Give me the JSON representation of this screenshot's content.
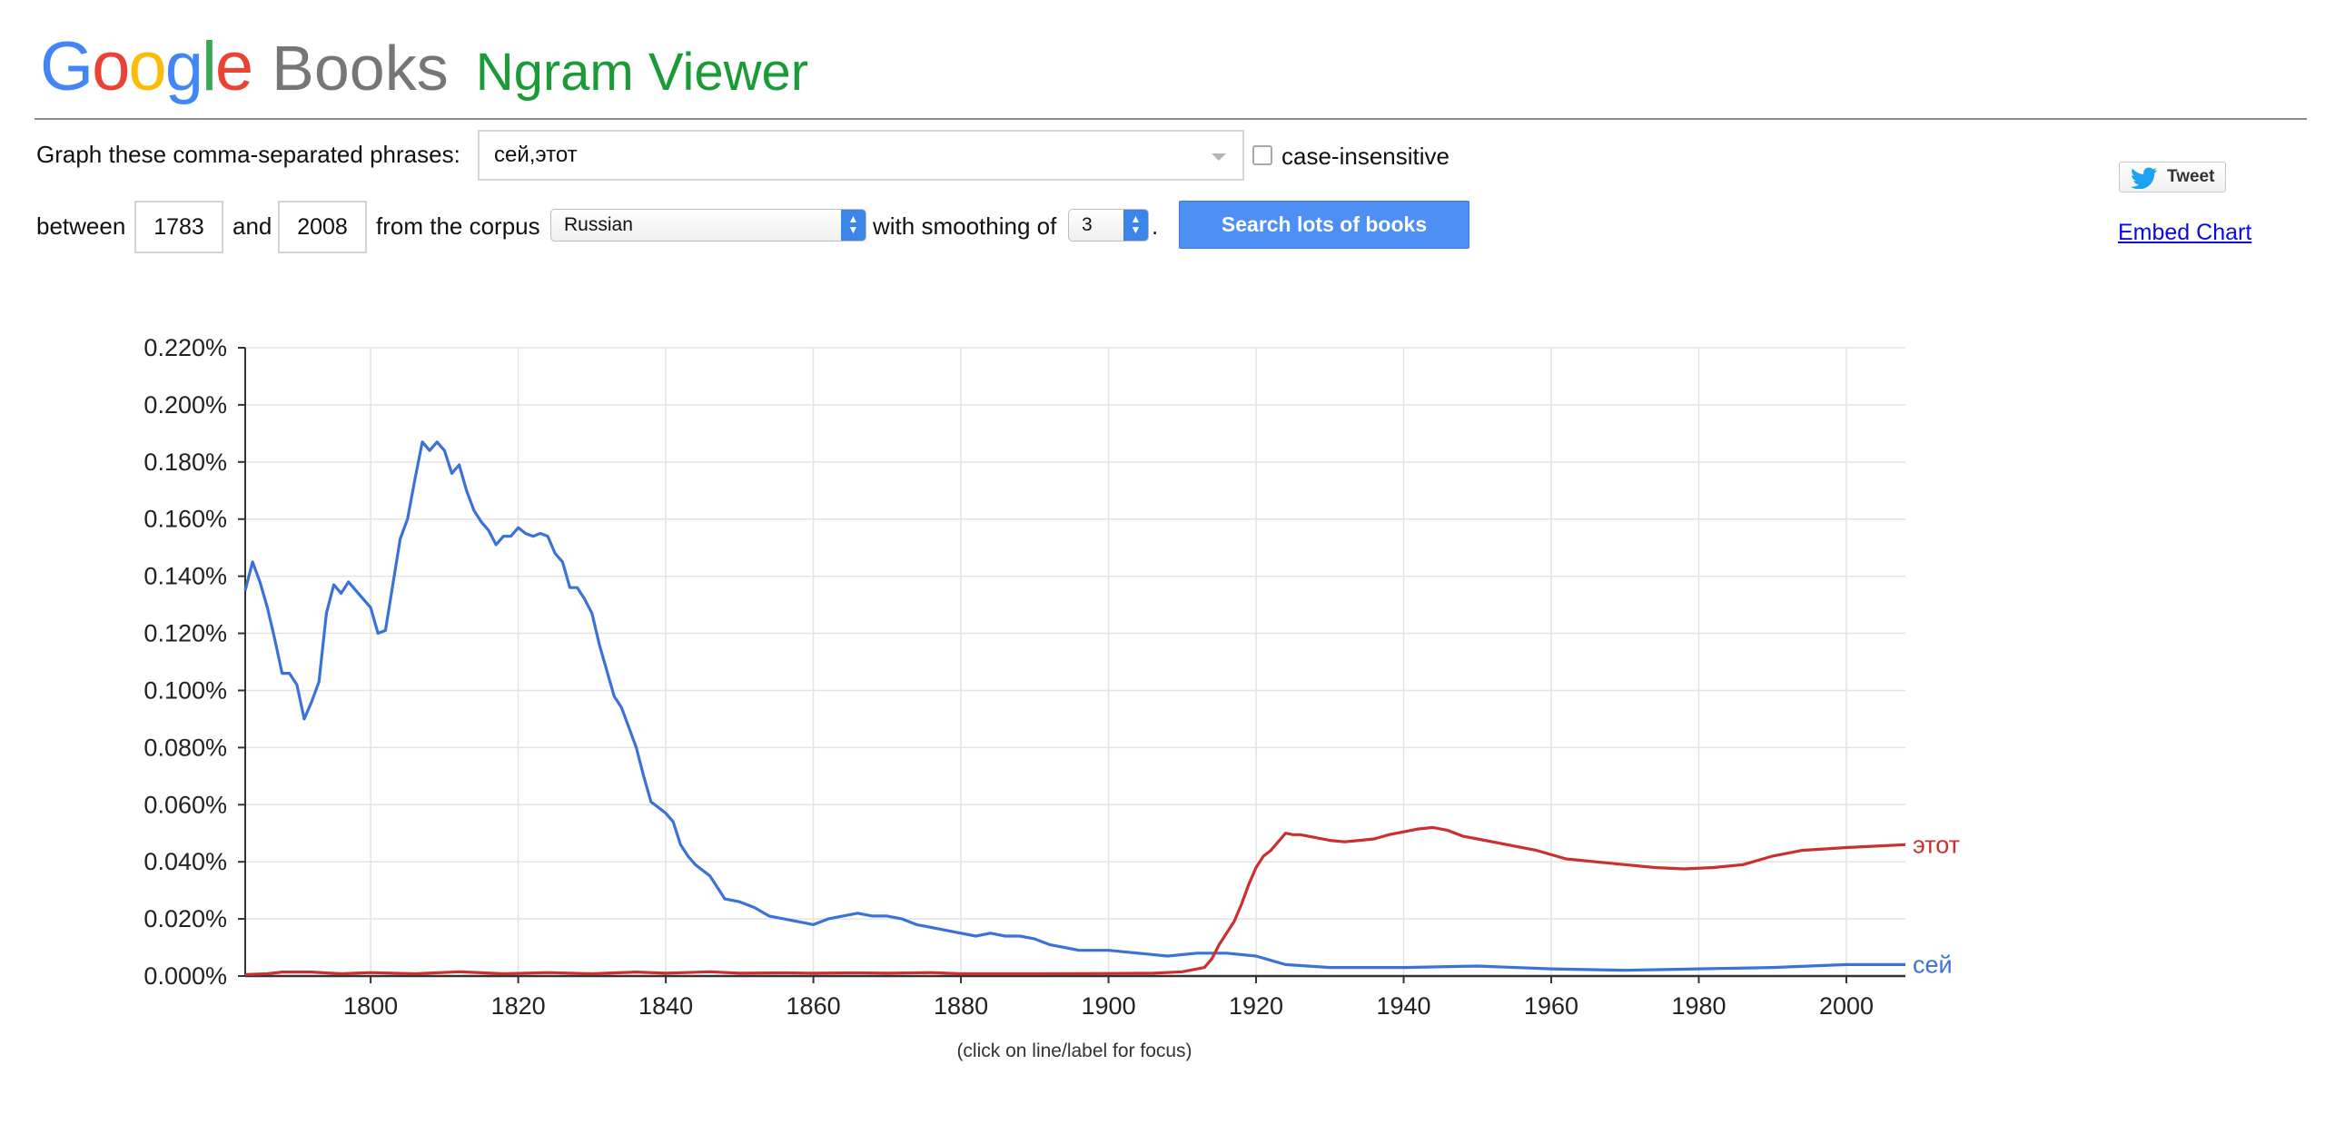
{
  "header": {
    "logo_google": "Google",
    "logo_books": "Books",
    "title": "Ngram Viewer"
  },
  "form": {
    "phrases_label": "Graph these comma-separated phrases:",
    "phrases_value": "сей,этот",
    "case_insensitive_label": "case-insensitive",
    "case_insensitive_checked": false,
    "between_label": "between",
    "start_year": "1783",
    "and_label": "and",
    "end_year": "2008",
    "corpus_label": "from the corpus",
    "corpus_value": "Russian",
    "smoothing_label": "with smoothing of",
    "smoothing_value": "3",
    "period": ".",
    "search_button": "Search lots of books"
  },
  "social": {
    "tweet_label": "Tweet",
    "embed_label": "Embed Chart"
  },
  "chart_hint": "(click on line/label for focus)",
  "colors": {
    "google_blue": "#4285f4",
    "google_red": "#ea4335",
    "google_yellow": "#fbbc05",
    "google_green": "#34a853",
    "ngram_green": "#1a9b38",
    "series_blue": "#3b72d9",
    "series_red": "#cc2f2f",
    "button_blue": "#4d8ff2",
    "link_blue": "#0a0ae0"
  },
  "chart_data": {
    "type": "line",
    "title": "",
    "xlabel": "",
    "ylabel": "",
    "xlim": [
      1783,
      2008
    ],
    "ylim": [
      0,
      0.22
    ],
    "x_ticks": [
      1800,
      1820,
      1840,
      1860,
      1880,
      1900,
      1920,
      1940,
      1960,
      1980,
      2000
    ],
    "x_tick_labels": [
      "1800",
      "1820",
      "1840",
      "1860",
      "1880",
      "1900",
      "1920",
      "1940",
      "1960",
      "1980",
      "2000"
    ],
    "y_ticks": [
      0,
      0.02,
      0.04,
      0.06,
      0.08,
      0.1,
      0.12,
      0.14,
      0.16,
      0.18,
      0.2,
      0.22
    ],
    "y_tick_labels": [
      "0.000%",
      "0.020%",
      "0.040%",
      "0.060%",
      "0.080%",
      "0.100%",
      "0.120%",
      "0.140%",
      "0.160%",
      "0.180%",
      "0.200%",
      "0.220%"
    ],
    "grid": true,
    "legend": "line-end labels",
    "series": [
      {
        "name": "сей",
        "color": "#3b72d9",
        "x": [
          1783,
          1784,
          1785,
          1786,
          1787,
          1788,
          1789,
          1790,
          1791,
          1792,
          1793,
          1794,
          1795,
          1796,
          1797,
          1798,
          1799,
          1800,
          1801,
          1802,
          1803,
          1804,
          1805,
          1806,
          1807,
          1808,
          1809,
          1810,
          1811,
          1812,
          1813,
          1814,
          1815,
          1816,
          1817,
          1818,
          1819,
          1820,
          1821,
          1822,
          1823,
          1824,
          1825,
          1826,
          1827,
          1828,
          1829,
          1830,
          1831,
          1832,
          1833,
          1834,
          1835,
          1836,
          1837,
          1838,
          1839,
          1840,
          1841,
          1842,
          1843,
          1844,
          1846,
          1848,
          1850,
          1852,
          1854,
          1856,
          1858,
          1860,
          1862,
          1864,
          1866,
          1868,
          1870,
          1872,
          1874,
          1876,
          1878,
          1880,
          1882,
          1884,
          1886,
          1888,
          1890,
          1892,
          1894,
          1896,
          1898,
          1900,
          1904,
          1908,
          1912,
          1916,
          1920,
          1924,
          1930,
          1940,
          1950,
          1960,
          1970,
          1980,
          1990,
          2000,
          2008
        ],
        "values": [
          0.135,
          0.145,
          0.138,
          0.129,
          0.118,
          0.106,
          0.106,
          0.102,
          0.09,
          0.096,
          0.103,
          0.127,
          0.137,
          0.134,
          0.138,
          0.135,
          0.132,
          0.129,
          0.12,
          0.121,
          0.137,
          0.153,
          0.16,
          0.174,
          0.187,
          0.184,
          0.187,
          0.184,
          0.176,
          0.179,
          0.17,
          0.163,
          0.159,
          0.156,
          0.151,
          0.154,
          0.154,
          0.157,
          0.155,
          0.154,
          0.155,
          0.154,
          0.148,
          0.145,
          0.136,
          0.136,
          0.132,
          0.127,
          0.116,
          0.107,
          0.098,
          0.094,
          0.087,
          0.08,
          0.07,
          0.061,
          0.059,
          0.057,
          0.054,
          0.046,
          0.042,
          0.039,
          0.035,
          0.027,
          0.026,
          0.024,
          0.021,
          0.02,
          0.019,
          0.018,
          0.02,
          0.021,
          0.022,
          0.021,
          0.021,
          0.02,
          0.018,
          0.017,
          0.016,
          0.015,
          0.014,
          0.015,
          0.014,
          0.014,
          0.013,
          0.011,
          0.01,
          0.009,
          0.009,
          0.009,
          0.008,
          0.007,
          0.008,
          0.008,
          0.007,
          0.004,
          0.003,
          0.003,
          0.0035,
          0.0025,
          0.002,
          0.0025,
          0.003,
          0.004,
          0.004
        ]
      },
      {
        "name": "этот",
        "color": "#cc2f2f",
        "x": [
          1783,
          1786,
          1788,
          1792,
          1796,
          1800,
          1806,
          1812,
          1818,
          1824,
          1830,
          1836,
          1840,
          1846,
          1850,
          1856,
          1860,
          1866,
          1870,
          1876,
          1880,
          1890,
          1900,
          1906,
          1910,
          1913,
          1914,
          1915,
          1916,
          1917,
          1918,
          1919,
          1920,
          1921,
          1922,
          1923,
          1924,
          1925,
          1926,
          1928,
          1930,
          1932,
          1934,
          1936,
          1938,
          1940,
          1942,
          1944,
          1946,
          1948,
          1950,
          1954,
          1958,
          1962,
          1966,
          1970,
          1974,
          1978,
          1982,
          1986,
          1990,
          1994,
          2000,
          2004,
          2008
        ],
        "values": [
          0.0005,
          0.0008,
          0.0014,
          0.0014,
          0.0008,
          0.0012,
          0.0008,
          0.0015,
          0.0008,
          0.0012,
          0.0008,
          0.0014,
          0.001,
          0.0015,
          0.001,
          0.0011,
          0.001,
          0.0011,
          0.001,
          0.0012,
          0.0008,
          0.0008,
          0.0009,
          0.001,
          0.0015,
          0.003,
          0.006,
          0.011,
          0.015,
          0.019,
          0.025,
          0.032,
          0.038,
          0.042,
          0.044,
          0.047,
          0.05,
          0.0495,
          0.0495,
          0.0485,
          0.0475,
          0.047,
          0.0475,
          0.048,
          0.0495,
          0.0505,
          0.0515,
          0.052,
          0.051,
          0.049,
          0.048,
          0.046,
          0.044,
          0.041,
          0.04,
          0.039,
          0.038,
          0.0375,
          0.038,
          0.039,
          0.042,
          0.044,
          0.045,
          0.0455,
          0.046
        ]
      }
    ]
  }
}
